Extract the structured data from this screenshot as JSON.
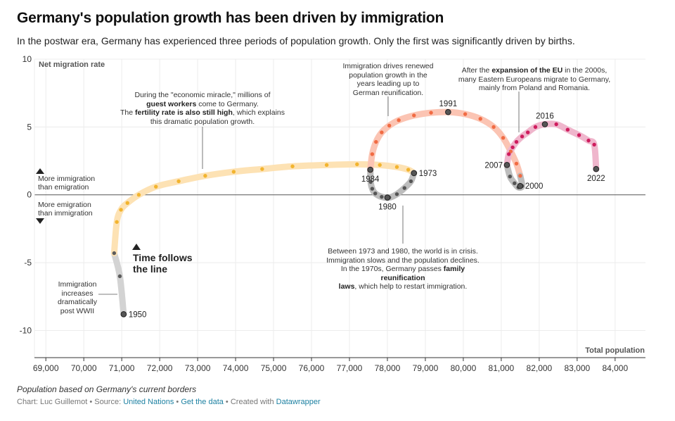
{
  "header": {
    "title": "Germany's population growth has been driven by immigration",
    "subtitle": "In the postwar era, Germany has experienced three periods of population growth. Only the first was significantly driven by births."
  },
  "labels": {
    "time_follows_1": "Time follows",
    "time_follows_2": "the line",
    "more_immigration_1": "More immigration",
    "more_immigration_2": "than emigration",
    "more_emigration_1": "More emigration",
    "more_emigration_2": "than immigration"
  },
  "annotations": {
    "postwar": [
      "Immigration",
      "increases",
      "dramatically",
      "post WWII"
    ],
    "miracle_1": "During the \"economic miracle,\" millions of",
    "miracle_2": "guest workers",
    "miracle_3": " come to Germany.",
    "miracle_4": "The ",
    "miracle_5": "fertility rate is also still high",
    "miracle_6": ", which explains",
    "miracle_7": "this dramatic population growth.",
    "reunification": [
      "Immigration drives renewed",
      "population growth in the",
      "years leading up to",
      "German reunification."
    ],
    "eu": {
      "line1_a": "After the ",
      "line1_b": "expansion of the EU",
      "line1_c": " in the 2000s,",
      "line2": "many Eastern Europeans migrate to Germany,",
      "line3": "mainly from Poland and Romania."
    },
    "crisis": {
      "line1": "Between 1973 and 1980, the world is in crisis.",
      "line2": "Immigration slows and the population declines.",
      "line3_a": "In the 1970s, Germany passes ",
      "line3_b": "family reunification",
      "line4_a": "laws",
      "line4_b": ", which help to restart immigration."
    }
  },
  "footer": {
    "note": "Population based on Germany's current borders",
    "credit_prefix": "Chart: Luc Guillemot • Source: ",
    "source_link": "United Nations",
    "sep1": " • ",
    "get_data": "Get the data",
    "sep2": " • Created with ",
    "datawrapper": "Datawrapper"
  },
  "chart_data": {
    "type": "scatter",
    "connected": true,
    "xlabel": "Total population",
    "ylabel": "Net migration rate",
    "xlim": [
      68700,
      84800
    ],
    "ylim": [
      -12,
      10
    ],
    "xticks": [
      69000,
      70000,
      71000,
      72000,
      73000,
      74000,
      75000,
      76000,
      77000,
      78000,
      79000,
      80000,
      81000,
      82000,
      83000,
      84000
    ],
    "xtick_labels": [
      "69,000",
      "70,000",
      "71,000",
      "72,000",
      "73,000",
      "74,000",
      "75,000",
      "76,000",
      "77,000",
      "78,000",
      "79,000",
      "80,000",
      "81,000",
      "82,000",
      "83,000",
      "84,000"
    ],
    "yticks": [
      -10,
      -5,
      0,
      5,
      10
    ],
    "ytick_labels": [
      "-10",
      "-5",
      "0",
      "5",
      "10"
    ],
    "colors": {
      "postwar": "#5c5c5c",
      "miracle": "#f2b42e",
      "crisis": "#555555",
      "reunification": "#f16b43",
      "decline": "#555555",
      "eu": "#cf1c5e",
      "postwar_line": "#d3d3d3",
      "miracle_line": "#fde2b4",
      "crisis_line": "#bdbdbd",
      "reunification_line": "#fbc4b3",
      "eu_line": "#efb6cc"
    },
    "segments": [
      {
        "name": "postwar",
        "x": [
          71050,
          70950,
          70800
        ],
        "y": [
          -8.8,
          -6.0,
          -4.3
        ]
      },
      {
        "name": "miracle",
        "x": [
          70800,
          70870,
          70980,
          71150,
          71450,
          71900,
          72500,
          73200,
          73950,
          74700,
          75500,
          76400,
          77200,
          77800,
          78250,
          78550,
          78700
        ],
        "y": [
          -4.3,
          -2.0,
          -1.1,
          -0.6,
          0.0,
          0.6,
          1.0,
          1.4,
          1.7,
          1.9,
          2.1,
          2.2,
          2.25,
          2.2,
          2.05,
          1.85,
          1.6
        ]
      },
      {
        "name": "crisis",
        "x": [
          78700,
          78620,
          78450,
          78250,
          78050,
          77850,
          77680,
          77600,
          77560,
          77550
        ],
        "y": [
          1.6,
          1.0,
          0.5,
          0.05,
          -0.2,
          -0.15,
          0.1,
          0.45,
          0.95,
          1.85
        ]
      },
      {
        "name": "reunification",
        "x": [
          77550,
          77600,
          77700,
          77850,
          78050,
          78300,
          78700,
          79150,
          79600,
          80050,
          80450,
          80800,
          81050,
          81250,
          81400,
          81500
        ],
        "y": [
          1.85,
          3.0,
          3.9,
          4.6,
          5.1,
          5.5,
          5.85,
          6.05,
          6.1,
          5.95,
          5.6,
          5.0,
          4.2,
          3.2,
          2.3,
          1.4
        ]
      },
      {
        "name": "decline",
        "x": [
          81500,
          81550,
          81450,
          81350,
          81230,
          81150
        ],
        "y": [
          1.4,
          0.65,
          0.55,
          0.85,
          1.35,
          2.2
        ]
      },
      {
        "name": "eu",
        "x": [
          81150,
          81200,
          81300,
          81400,
          81550,
          81700,
          81900,
          82150,
          82450,
          82750,
          83050,
          83300,
          83450,
          83500
        ],
        "y": [
          2.2,
          3.0,
          3.5,
          3.9,
          4.3,
          4.6,
          5.0,
          5.2,
          5.2,
          4.8,
          4.4,
          4.0,
          3.7,
          1.9
        ]
      }
    ],
    "year_labels": [
      {
        "year": "1950",
        "x": 71050,
        "y": -8.8,
        "anchor": "right"
      },
      {
        "year": "1973",
        "x": 78700,
        "y": 1.6,
        "anchor": "right"
      },
      {
        "year": "1980",
        "x": 78000,
        "y": -0.2,
        "anchor": "below"
      },
      {
        "year": "1984",
        "x": 77550,
        "y": 1.85,
        "anchor": "below"
      },
      {
        "year": "1991",
        "x": 79600,
        "y": 6.1,
        "anchor": "above"
      },
      {
        "year": "2000",
        "x": 81500,
        "y": 0.65,
        "anchor": "right"
      },
      {
        "year": "2007",
        "x": 81150,
        "y": 2.2,
        "anchor": "left"
      },
      {
        "year": "2016",
        "x": 82150,
        "y": 5.2,
        "anchor": "above"
      },
      {
        "year": "2022",
        "x": 83500,
        "y": 1.9,
        "anchor": "below"
      }
    ]
  }
}
